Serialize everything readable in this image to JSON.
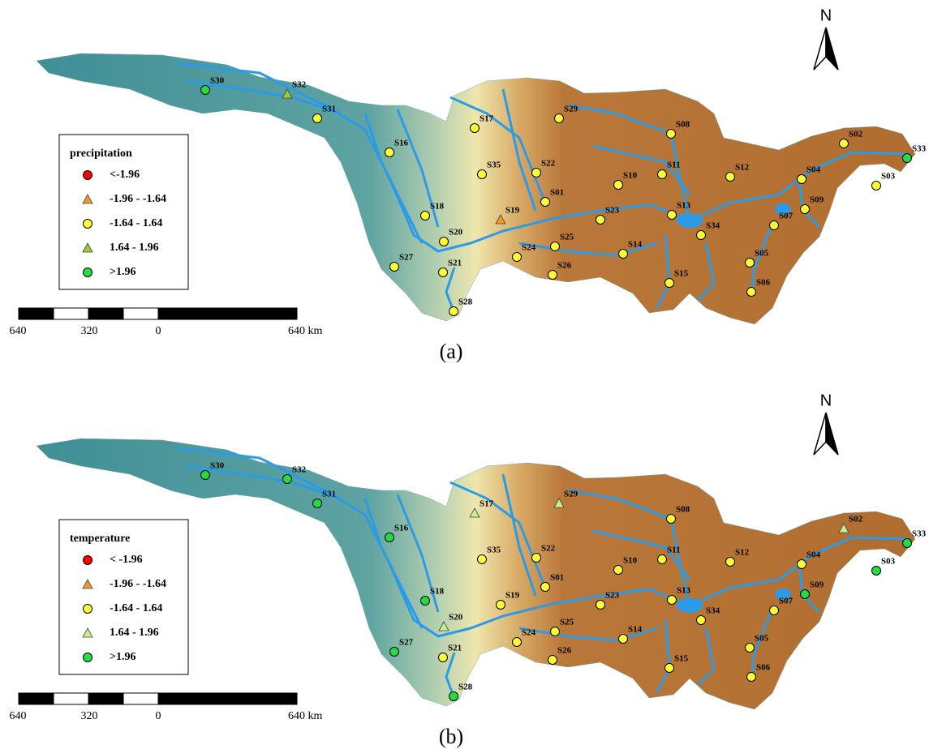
{
  "north": "N",
  "scale_labels": [
    "640",
    "320",
    "0",
    "640 km"
  ],
  "panels": [
    {
      "caption": "(a)",
      "legend_title": "precipitation",
      "legend": [
        {
          "label": "<-1.96",
          "color": "#ff0000",
          "shape": "circle"
        },
        {
          "label": "-1.96 - -1.64",
          "color": "#f39a1e",
          "shape": "triangle"
        },
        {
          "label": "-1.64 - 1.64",
          "color": "#ffff33",
          "shape": "circle"
        },
        {
          "label": "1.64 - 1.96",
          "color": "#9acd32",
          "shape": "triangle"
        },
        {
          "label": ">1.96",
          "color": "#22dd44",
          "shape": "circle"
        }
      ],
      "stations": [
        {
          "label": "S30",
          "class": 4
        },
        {
          "label": "S32",
          "class": 3
        },
        {
          "label": "S31",
          "class": 2
        },
        {
          "label": "S16",
          "class": 2
        },
        {
          "label": "S18",
          "class": 2
        },
        {
          "label": "S20",
          "class": 2
        },
        {
          "label": "S27",
          "class": 2
        },
        {
          "label": "S21",
          "class": 2
        },
        {
          "label": "S28",
          "class": 2
        },
        {
          "label": "S17",
          "class": 2
        },
        {
          "label": "S35",
          "class": 2
        },
        {
          "label": "S22",
          "class": 2
        },
        {
          "label": "S01",
          "class": 2
        },
        {
          "label": "S19",
          "class": 1
        },
        {
          "label": "S24",
          "class": 2
        },
        {
          "label": "S25",
          "class": 2
        },
        {
          "label": "S26",
          "class": 2
        },
        {
          "label": "S29",
          "class": 2
        },
        {
          "label": "S08",
          "class": 2
        },
        {
          "label": "S10",
          "class": 2
        },
        {
          "label": "S11",
          "class": 2
        },
        {
          "label": "S12",
          "class": 2
        },
        {
          "label": "S13",
          "class": 2
        },
        {
          "label": "S23",
          "class": 2
        },
        {
          "label": "S34",
          "class": 2
        },
        {
          "label": "S14",
          "class": 2
        },
        {
          "label": "S15",
          "class": 2
        },
        {
          "label": "S07",
          "class": 2
        },
        {
          "label": "S09",
          "class": 2
        },
        {
          "label": "S05",
          "class": 2
        },
        {
          "label": "S06",
          "class": 2
        },
        {
          "label": "S04",
          "class": 2
        },
        {
          "label": "S02",
          "class": 2
        },
        {
          "label": "S03",
          "class": 2
        },
        {
          "label": "S33",
          "class": 4
        }
      ]
    },
    {
      "caption": "(b)",
      "legend_title": "temperature",
      "legend": [
        {
          "label": "< -1.96",
          "color": "#ff0000",
          "shape": "circle"
        },
        {
          "label": "-1.96 - -1.64",
          "color": "#f39a1e",
          "shape": "triangle"
        },
        {
          "label": "-1.64 - 1.64",
          "color": "#ffff33",
          "shape": "circle"
        },
        {
          "label": "1.64 - 1.96",
          "color": "#c8f08c",
          "shape": "triangle"
        },
        {
          "label": ">1.96",
          "color": "#22dd44",
          "shape": "circle"
        }
      ],
      "stations": [
        {
          "label": "S30",
          "class": 4
        },
        {
          "label": "S32",
          "class": 4
        },
        {
          "label": "S31",
          "class": 4
        },
        {
          "label": "S16",
          "class": 4
        },
        {
          "label": "S18",
          "class": 4
        },
        {
          "label": "S20",
          "class": 3
        },
        {
          "label": "S27",
          "class": 4
        },
        {
          "label": "S21",
          "class": 2
        },
        {
          "label": "S28",
          "class": 4
        },
        {
          "label": "S17",
          "class": 3
        },
        {
          "label": "S35",
          "class": 2
        },
        {
          "label": "S22",
          "class": 2
        },
        {
          "label": "S01",
          "class": 2
        },
        {
          "label": "S19",
          "class": 2
        },
        {
          "label": "S24",
          "class": 2
        },
        {
          "label": "S25",
          "class": 2
        },
        {
          "label": "S26",
          "class": 2
        },
        {
          "label": "S29",
          "class": 3
        },
        {
          "label": "S08",
          "class": 2
        },
        {
          "label": "S10",
          "class": 2
        },
        {
          "label": "S11",
          "class": 2
        },
        {
          "label": "S12",
          "class": 2
        },
        {
          "label": "S13",
          "class": 2
        },
        {
          "label": "S23",
          "class": 2
        },
        {
          "label": "S34",
          "class": 2
        },
        {
          "label": "S14",
          "class": 2
        },
        {
          "label": "S15",
          "class": 2
        },
        {
          "label": "S07",
          "class": 2
        },
        {
          "label": "S09",
          "class": 4
        },
        {
          "label": "S05",
          "class": 2
        },
        {
          "label": "S06",
          "class": 2
        },
        {
          "label": "S04",
          "class": 2
        },
        {
          "label": "S02",
          "class": 3
        },
        {
          "label": "S03",
          "class": 4
        },
        {
          "label": "S33",
          "class": 4
        }
      ]
    }
  ]
}
